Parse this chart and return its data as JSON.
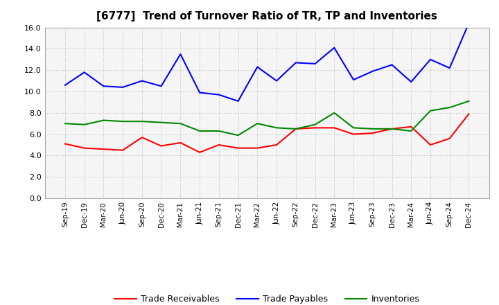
{
  "title": "[6777]  Trend of Turnover Ratio of TR, TP and Inventories",
  "x_labels": [
    "Sep-19",
    "Dec-19",
    "Mar-20",
    "Jun-20",
    "Sep-20",
    "Dec-20",
    "Mar-21",
    "Jun-21",
    "Sep-21",
    "Dec-21",
    "Mar-22",
    "Jun-22",
    "Sep-22",
    "Dec-22",
    "Mar-23",
    "Jun-23",
    "Sep-23",
    "Dec-23",
    "Mar-24",
    "Jun-24",
    "Sep-24",
    "Dec-24"
  ],
  "trade_receivables": [
    5.1,
    4.7,
    4.6,
    4.5,
    5.7,
    4.9,
    5.2,
    4.3,
    5.0,
    4.7,
    4.7,
    5.0,
    6.5,
    6.6,
    6.6,
    6.0,
    6.1,
    6.5,
    6.7,
    5.0,
    5.6,
    7.9
  ],
  "trade_payables": [
    10.6,
    11.8,
    10.5,
    10.4,
    11.0,
    10.5,
    13.5,
    9.9,
    9.7,
    9.1,
    12.3,
    11.0,
    12.7,
    12.6,
    14.1,
    11.1,
    11.9,
    12.5,
    10.9,
    13.0,
    12.2,
    16.4
  ],
  "inventories": [
    7.0,
    6.9,
    7.3,
    7.2,
    7.2,
    7.1,
    7.0,
    6.3,
    6.3,
    5.9,
    7.0,
    6.6,
    6.5,
    6.9,
    8.0,
    6.6,
    6.5,
    6.5,
    6.3,
    8.2,
    8.5,
    9.1
  ],
  "ylim": [
    0.0,
    16.0
  ],
  "yticks": [
    0.0,
    2.0,
    4.0,
    6.0,
    8.0,
    10.0,
    12.0,
    14.0,
    16.0
  ],
  "tr_color": "#ff0000",
  "tp_color": "#0000ff",
  "inv_color": "#008800",
  "background_color": "#ffffff",
  "plot_bg_color": "#f5f5f5",
  "grid_color": "#bbbbbb",
  "legend_tr": "Trade Receivables",
  "legend_tp": "Trade Payables",
  "legend_inv": "Inventories",
  "title_fontsize": 11,
  "tick_fontsize": 7.5,
  "ytick_fontsize": 8
}
